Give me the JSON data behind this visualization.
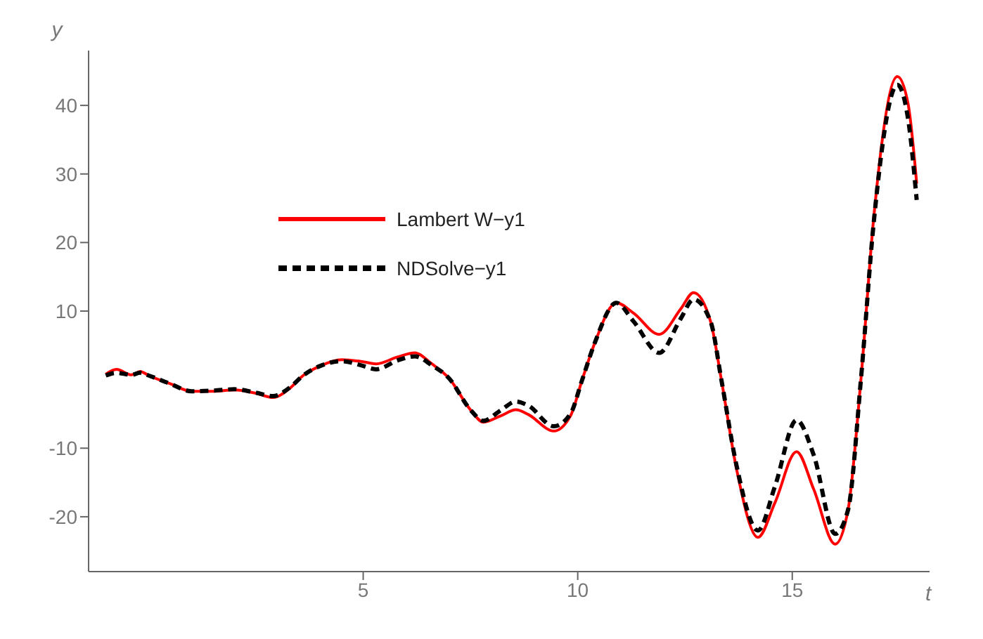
{
  "chart_data": {
    "type": "line",
    "xlabel": "t",
    "ylabel": "y",
    "xlim": [
      -1.4,
      18.2
    ],
    "ylim": [
      -28,
      48
    ],
    "xticks": [
      5,
      10,
      15
    ],
    "yticks": [
      -20,
      -10,
      10,
      20,
      30,
      40
    ],
    "legend": "top left",
    "marker": "none",
    "x": [
      -1,
      -0.75,
      -0.4,
      -0.2,
      0,
      0.5,
      1,
      1.5,
      2,
      2.5,
      2.9,
      3.3,
      3.6,
      4,
      4.5,
      5,
      5.3,
      5.8,
      6.2,
      6.6,
      7,
      7.5,
      7.8,
      8.2,
      8.56,
      8.85,
      9.44,
      9.83,
      10.1,
      10.4,
      10.9,
      11.3,
      11.9,
      12.4,
      12.7,
      13.1,
      13.35,
      13.7,
      14.2,
      14.6,
      15.1,
      15.5,
      16,
      16.3,
      16.6,
      16.9,
      17.45,
      17.7,
      17.9
    ],
    "series": [
      {
        "name": "Lambert W−y1",
        "color": "#ff0000",
        "line_style": "solid",
        "values": [
          0.8,
          1.5,
          0.7,
          1.2,
          0.6,
          -0.6,
          -1.7,
          -1.7,
          -1.5,
          -2,
          -2.6,
          -1.2,
          0.6,
          2,
          2.9,
          2.6,
          2.3,
          3.3,
          3.9,
          2.3,
          0.2,
          -4.4,
          -6.2,
          -5.3,
          -4.4,
          -5.1,
          -7.5,
          -5.3,
          -0.1,
          5.4,
          11.2,
          9.7,
          6.6,
          10.3,
          12.7,
          8.4,
          -0.1,
          -13,
          -23,
          -17.9,
          -10.5,
          -16,
          -24,
          -19,
          0,
          23.7,
          44.2,
          40.2,
          28.6
        ]
      },
      {
        "name": "NDSolve−y1",
        "color": "#000000",
        "line_style": "dashed",
        "values": [
          0.6,
          1,
          0.7,
          1,
          0.6,
          -0.6,
          -1.7,
          -1.6,
          -1.4,
          -1.9,
          -2.4,
          -1.1,
          0.6,
          2,
          2.7,
          2,
          1.5,
          2.8,
          3.4,
          2.1,
          0.2,
          -4.4,
          -6,
          -4.5,
          -3.2,
          -3.8,
          -6.8,
          -5,
          -0.1,
          5.4,
          11.2,
          8.5,
          3.9,
          8.9,
          11.7,
          8.4,
          -0.1,
          -12.5,
          -22,
          -15.5,
          -5.9,
          -11,
          -22.5,
          -19,
          0,
          23,
          43,
          38,
          26.2
        ]
      }
    ]
  }
}
